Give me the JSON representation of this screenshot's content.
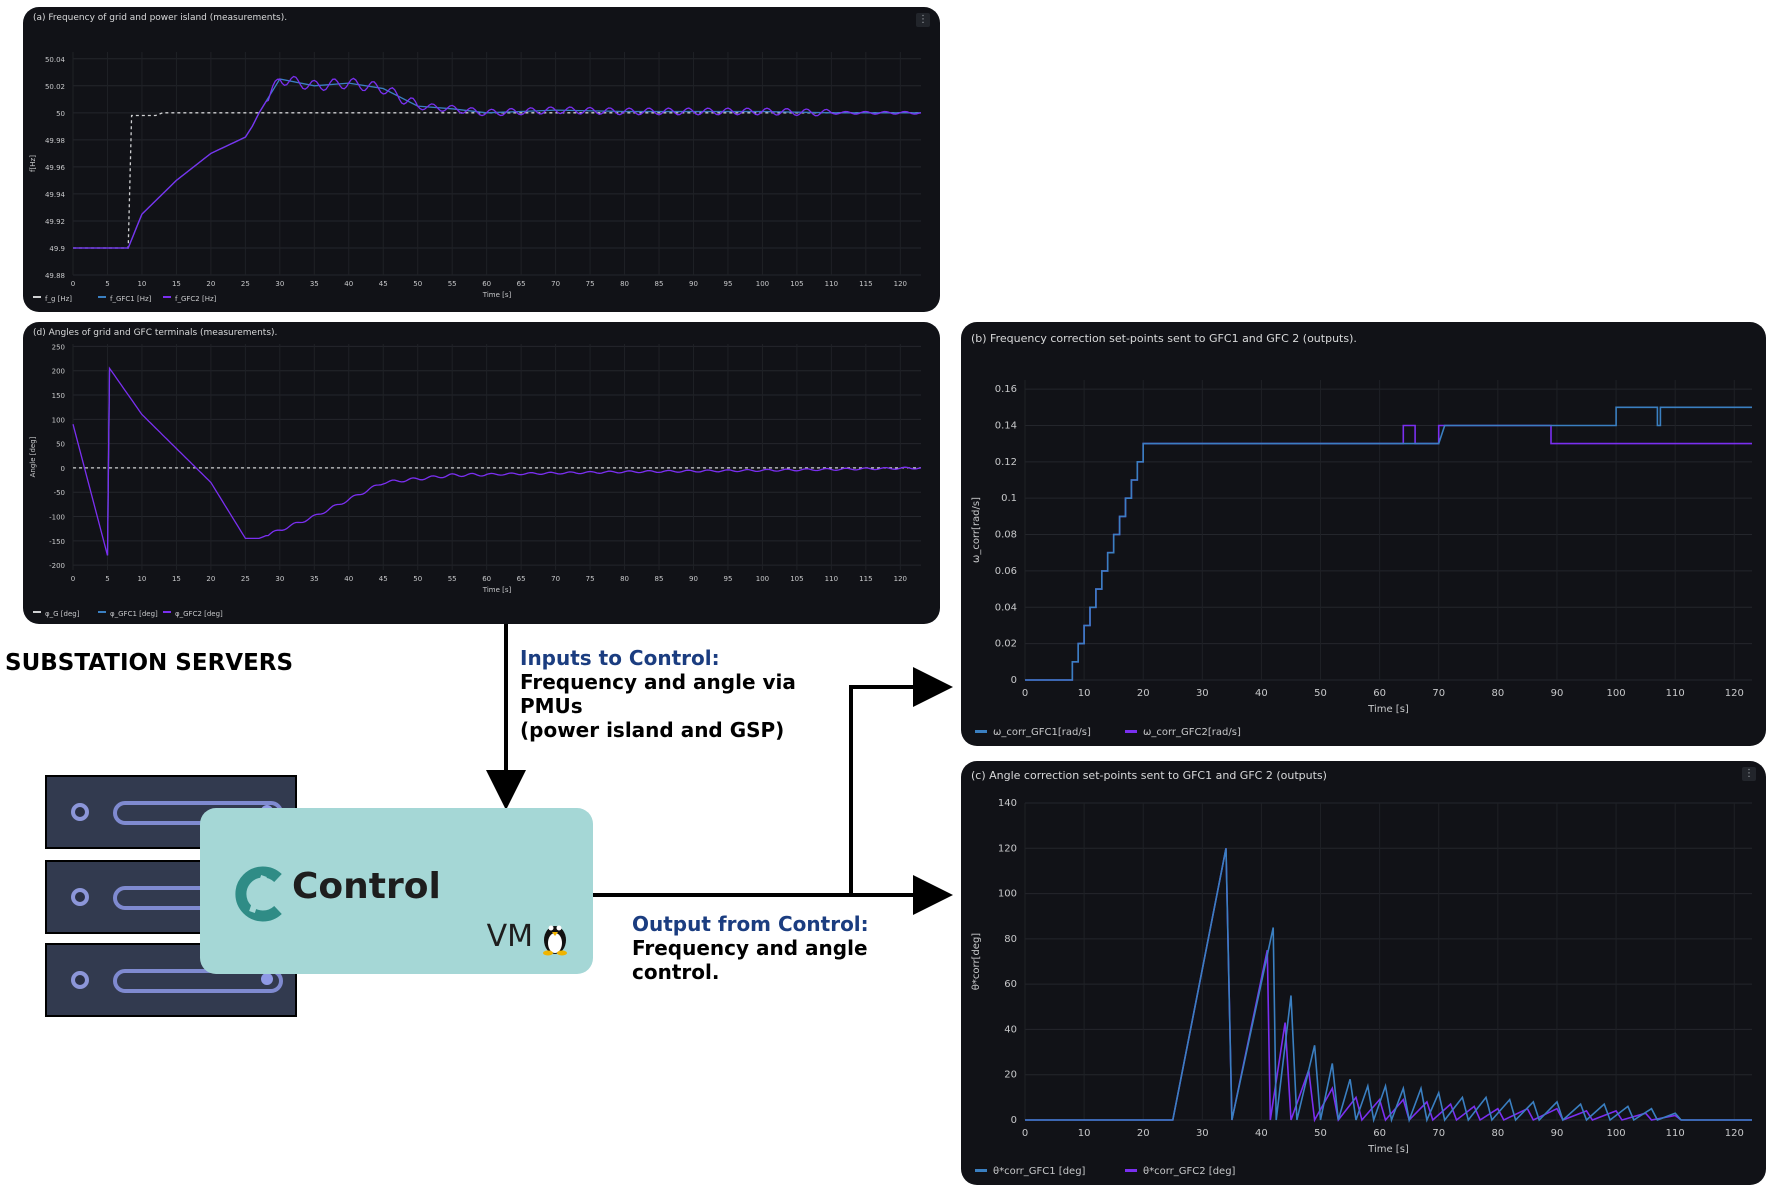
{
  "panels": {
    "a": {
      "title": "(a) Frequency of grid and power island (measurements).",
      "xlabel": "Time [s]",
      "ylabel": "f[Hz]",
      "yticks": [
        "50.04",
        "50.02",
        "50",
        "49.98",
        "49.96",
        "49.94",
        "49.92",
        "49.9",
        "49.88"
      ],
      "legend": [
        "f_g [Hz]",
        "f_GFC1 [Hz]",
        "f_GFC2 [Hz]"
      ]
    },
    "d": {
      "title": "(d) Angles of grid and GFC terminals (measurements).",
      "xlabel": "Time [s]",
      "ylabel": "Angle [deg]",
      "yticks": [
        "250",
        "200",
        "150",
        "100",
        "50",
        "0",
        "-50",
        "-100",
        "-150",
        "-200"
      ],
      "legend": [
        "φ_G [deg]",
        "φ_GFC1 [deg]",
        "φ_GFC2 [deg]"
      ]
    },
    "b": {
      "title": "(b) Frequency correction set-points sent to GFC1 and GFC 2 (outputs).",
      "xlabel": "Time [s]",
      "ylabel": "ω_corr[rad/s]",
      "yticks": [
        "0.16",
        "0.14",
        "0.12",
        "0.1",
        "0.08",
        "0.06",
        "0.04",
        "0.02",
        "0"
      ],
      "legend": [
        "ω_corr_GFC1[rad/s]",
        "ω_corr_GFC2[rad/s]"
      ]
    },
    "c": {
      "title": "(c) Angle correction set-points sent to GFC1 and GFC 2 (outputs)",
      "xlabel": "Time [s]",
      "ylabel": "θ*corr[deg]",
      "yticks": [
        "140",
        "120",
        "100",
        "80",
        "60",
        "40",
        "20",
        "0"
      ],
      "legend": [
        "θ*corr_GFC1 [deg]",
        "θ*corr_GFC2 [deg]"
      ]
    }
  },
  "xticks_fine": [
    "0",
    "5",
    "10",
    "15",
    "20",
    "25",
    "30",
    "35",
    "40",
    "45",
    "50",
    "55",
    "60",
    "65",
    "70",
    "75",
    "80",
    "85",
    "90",
    "95",
    "100",
    "105",
    "110",
    "115",
    "120"
  ],
  "xticks_coarse": [
    "0",
    "10",
    "20",
    "30",
    "40",
    "50",
    "60",
    "70",
    "80",
    "90",
    "100",
    "110",
    "120"
  ],
  "annotations": {
    "inputs_heading": "Inputs to Control:",
    "inputs_body": [
      "Frequency and angle via",
      "PMUs",
      "(power island and GSP)"
    ],
    "output_heading": "Output from Control:",
    "output_body": [
      "Frequency and angle",
      "control."
    ]
  },
  "substation_label": "SUBSTATION SERVERS",
  "vm": {
    "name": "Control",
    "label": "VM",
    "icon": "linux-penguin-icon"
  },
  "colors": {
    "gfc1": "#3a7fc1",
    "gfc2": "#7a2ff0",
    "grid": "#cfd0d2",
    "panel": "#111217",
    "vm": "#a5d7d6",
    "accent": "#1b3d80"
  },
  "chart_data": [
    {
      "id": "a",
      "type": "line",
      "x_range": [
        0,
        123
      ],
      "ylim": [
        49.88,
        50.045
      ],
      "series": [
        {
          "name": "f_g [Hz]",
          "style": "dashed",
          "points": [
            [
              0,
              49.9
            ],
            [
              8,
              49.9
            ],
            [
              8.5,
              49.998
            ],
            [
              12,
              49.998
            ],
            [
              13,
              50.0
            ],
            [
              123,
              50.0
            ]
          ]
        },
        {
          "name": "f_GFC1 [Hz]",
          "points": [
            [
              0,
              49.9
            ],
            [
              8,
              49.9
            ],
            [
              10,
              49.925
            ],
            [
              15,
              49.95
            ],
            [
              20,
              49.97
            ],
            [
              25,
              49.982
            ],
            [
              26,
              49.99
            ],
            [
              27,
              50.0
            ],
            [
              30,
              50.025
            ],
            [
              35,
              50.02
            ],
            [
              40,
              50.022
            ],
            [
              45,
              50.018
            ],
            [
              50,
              50.005
            ],
            [
              55,
              50.003
            ],
            [
              60,
              50.0
            ],
            [
              70,
              50.002
            ],
            [
              80,
              50.001
            ],
            [
              90,
              50.001
            ],
            [
              100,
              50.001
            ],
            [
              110,
              50.0
            ],
            [
              123,
              50.0
            ]
          ]
        },
        {
          "name": "f_GFC2 [Hz]",
          "oscillating": true,
          "points": [
            [
              0,
              49.9
            ],
            [
              8,
              49.9
            ],
            [
              10,
              49.925
            ],
            [
              15,
              49.95
            ],
            [
              20,
              49.97
            ],
            [
              25,
              49.982
            ],
            [
              26,
              49.99
            ],
            [
              27,
              50.0
            ],
            [
              30,
              50.025
            ],
            [
              35,
              50.02
            ],
            [
              40,
              50.022
            ],
            [
              45,
              50.018
            ],
            [
              50,
              50.005
            ],
            [
              55,
              50.003
            ],
            [
              60,
              50.0
            ],
            [
              70,
              50.002
            ],
            [
              80,
              50.001
            ],
            [
              90,
              50.001
            ],
            [
              100,
              50.001
            ],
            [
              110,
              50.0
            ],
            [
              123,
              50.0
            ]
          ]
        }
      ]
    },
    {
      "id": "d",
      "type": "line",
      "x_range": [
        0,
        123
      ],
      "ylim": [
        -210,
        255
      ],
      "series": [
        {
          "name": "φ_G [deg]",
          "style": "dashed",
          "points": [
            [
              0,
              0
            ],
            [
              123,
              0
            ]
          ]
        },
        {
          "name": "φ_GFC1 [deg]",
          "points": [
            [
              5,
              -180
            ],
            [
              5.3,
              200
            ]
          ]
        },
        {
          "name": "φ_GFC2 [deg]",
          "oscillating": true,
          "points": [
            [
              0,
              90
            ],
            [
              5,
              -180
            ],
            [
              5.3,
              205
            ],
            [
              10,
              110
            ],
            [
              15,
              40
            ],
            [
              20,
              -30
            ],
            [
              25,
              -145
            ],
            [
              27,
              -145
            ],
            [
              35,
              -100
            ],
            [
              45,
              -30
            ],
            [
              55,
              -15
            ],
            [
              65,
              -12
            ],
            [
              80,
              -8
            ],
            [
              100,
              -5
            ],
            [
              110,
              -3
            ],
            [
              123,
              0
            ]
          ]
        }
      ]
    },
    {
      "id": "b",
      "type": "step",
      "x_range": [
        0,
        123
      ],
      "ylim": [
        0,
        0.165
      ],
      "series": [
        {
          "name": "ω_corr_GFC1[rad/s]",
          "points": [
            [
              0,
              0
            ],
            [
              8,
              0
            ],
            [
              8,
              0.01
            ],
            [
              9,
              0.01
            ],
            [
              9,
              0.02
            ],
            [
              10,
              0.02
            ],
            [
              10,
              0.03
            ],
            [
              11,
              0.03
            ],
            [
              11,
              0.04
            ],
            [
              12,
              0.04
            ],
            [
              12,
              0.05
            ],
            [
              13,
              0.05
            ],
            [
              13,
              0.06
            ],
            [
              14,
              0.06
            ],
            [
              14,
              0.07
            ],
            [
              15,
              0.07
            ],
            [
              15,
              0.08
            ],
            [
              16,
              0.08
            ],
            [
              16,
              0.09
            ],
            [
              17,
              0.09
            ],
            [
              17,
              0.1
            ],
            [
              18,
              0.1
            ],
            [
              18,
              0.11
            ],
            [
              19,
              0.11
            ],
            [
              19,
              0.12
            ],
            [
              20,
              0.12
            ],
            [
              20,
              0.13
            ],
            [
              64,
              0.13
            ],
            [
              64,
              0.14
            ],
            [
              66,
              0.14
            ],
            [
              66,
              0.13
            ],
            [
              70,
              0.13
            ],
            [
              70,
              0.14
            ],
            [
              89,
              0.14
            ],
            [
              89,
              0.13
            ],
            [
              123,
              0.13
            ]
          ]
        },
        {
          "name": "ω_corr_GFC2[rad/s]",
          "points": [
            [
              0,
              0
            ],
            [
              8,
              0
            ],
            [
              8,
              0.01
            ],
            [
              9,
              0.01
            ],
            [
              9,
              0.02
            ],
            [
              10,
              0.02
            ],
            [
              10,
              0.03
            ],
            [
              11,
              0.03
            ],
            [
              11,
              0.04
            ],
            [
              12,
              0.04
            ],
            [
              12,
              0.05
            ],
            [
              13,
              0.05
            ],
            [
              13,
              0.06
            ],
            [
              14,
              0.06
            ],
            [
              14,
              0.07
            ],
            [
              15,
              0.07
            ],
            [
              15,
              0.08
            ],
            [
              16,
              0.08
            ],
            [
              16,
              0.09
            ],
            [
              17,
              0.09
            ],
            [
              17,
              0.1
            ],
            [
              18,
              0.1
            ],
            [
              18,
              0.11
            ],
            [
              19,
              0.11
            ],
            [
              19,
              0.12
            ],
            [
              20,
              0.12
            ],
            [
              20,
              0.13
            ],
            [
              70,
              0.13
            ],
            [
              71,
              0.14
            ],
            [
              100,
              0.14
            ],
            [
              100,
              0.15
            ],
            [
              107,
              0.15
            ],
            [
              107,
              0.14
            ],
            [
              107.5,
              0.14
            ],
            [
              107.5,
              0.15
            ],
            [
              123,
              0.15
            ]
          ]
        }
      ]
    },
    {
      "id": "c",
      "type": "line",
      "x_range": [
        0,
        123
      ],
      "ylim": [
        0,
        140
      ],
      "series": [
        {
          "name": "θ*corr_GFC1 [deg]",
          "points": [
            [
              0,
              0
            ],
            [
              25,
              0
            ],
            [
              34,
              120
            ],
            [
              35,
              0
            ],
            [
              41,
              75
            ],
            [
              41.5,
              0
            ],
            [
              44,
              43
            ],
            [
              45,
              0
            ],
            [
              48,
              22
            ],
            [
              49,
              0
            ],
            [
              52,
              14
            ],
            [
              53,
              0
            ],
            [
              56,
              10
            ],
            [
              57,
              0
            ],
            [
              60,
              9
            ],
            [
              61,
              0
            ],
            [
              64,
              9
            ],
            [
              65,
              0
            ],
            [
              68,
              8
            ],
            [
              69,
              0
            ],
            [
              72,
              7
            ],
            [
              73,
              0
            ],
            [
              76,
              6
            ],
            [
              77,
              0
            ],
            [
              80,
              5
            ],
            [
              81,
              0
            ],
            [
              85,
              5
            ],
            [
              86,
              0
            ],
            [
              90,
              5
            ],
            [
              91,
              0
            ],
            [
              95,
              4
            ],
            [
              96,
              0
            ],
            [
              100,
              4
            ],
            [
              101,
              0
            ],
            [
              105,
              3
            ],
            [
              106,
              0
            ],
            [
              110,
              2
            ],
            [
              111,
              0
            ],
            [
              123,
              0
            ]
          ]
        },
        {
          "name": "θ*corr_GFC2 [deg]",
          "points": [
            [
              0,
              0
            ],
            [
              25,
              0
            ],
            [
              34,
              120
            ],
            [
              35,
              0
            ],
            [
              42,
              85
            ],
            [
              42.5,
              0
            ],
            [
              45,
              55
            ],
            [
              46,
              0
            ],
            [
              49,
              33
            ],
            [
              50,
              0
            ],
            [
              52,
              25
            ],
            [
              53,
              0
            ],
            [
              55,
              18
            ],
            [
              56,
              0
            ],
            [
              58,
              15
            ],
            [
              59,
              0
            ],
            [
              61,
              15
            ],
            [
              62,
              0
            ],
            [
              64,
              14
            ],
            [
              65,
              0
            ],
            [
              67,
              14
            ],
            [
              68,
              0
            ],
            [
              70,
              12
            ],
            [
              71,
              0
            ],
            [
              74,
              10
            ],
            [
              75,
              0
            ],
            [
              78,
              10
            ],
            [
              79,
              0
            ],
            [
              82,
              9
            ],
            [
              83,
              0
            ],
            [
              86,
              8
            ],
            [
              87,
              0
            ],
            [
              90,
              8
            ],
            [
              91,
              0
            ],
            [
              94,
              7
            ],
            [
              95,
              0
            ],
            [
              98,
              7
            ],
            [
              99,
              0
            ],
            [
              102,
              6
            ],
            [
              103,
              0
            ],
            [
              106,
              5
            ],
            [
              107,
              0
            ],
            [
              110,
              3
            ],
            [
              111,
              0
            ],
            [
              123,
              0
            ]
          ]
        }
      ]
    }
  ]
}
